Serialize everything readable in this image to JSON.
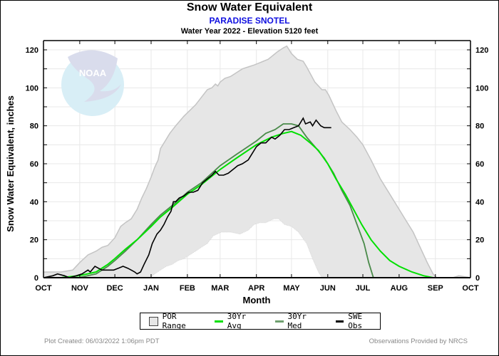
{
  "header": {
    "title": "Snow Water Equivalent",
    "station": "PARADISE SNOTEL",
    "subtitle": "Water Year 2022 -  Elevation 5120 feet"
  },
  "legend": {
    "items": [
      {
        "label": "POR Range",
        "kind": "box",
        "color": "#e6e6e6"
      },
      {
        "label": "30Yr Avg",
        "kind": "line",
        "color": "#00e000"
      },
      {
        "label": "30Yr Med",
        "kind": "line",
        "color": "#4a8a4a"
      },
      {
        "label": "SWE Obs",
        "kind": "line",
        "color": "#000000"
      }
    ]
  },
  "footer": {
    "left": "Plot Created: 06/03/2022 1:06pm PDT",
    "right": "Observations Provided by NRCS"
  },
  "logo": {
    "text": "NOAA"
  },
  "colors": {
    "por_fill": "#e6e6e6",
    "por_edge": "#c4c4c4",
    "avg": "#00e000",
    "med": "#4a8a4a",
    "obs": "#000000",
    "grid": "#e8e8e8"
  },
  "chart_data": {
    "type": "area",
    "title": "Snow Water Equivalent",
    "xlabel": "Month",
    "ylabel": "Snow Water Equivalent, inches",
    "x_unit": "day of water year (0 = Oct 1)",
    "xlim": [
      0,
      365
    ],
    "ylim": [
      0,
      120
    ],
    "grid": true,
    "legend_position": "bottom",
    "x_ticks": [
      {
        "label": "OCT",
        "day": 0
      },
      {
        "label": "NOV",
        "day": 31
      },
      {
        "label": "DEC",
        "day": 61
      },
      {
        "label": "JAN",
        "day": 92
      },
      {
        "label": "FEB",
        "day": 123
      },
      {
        "label": "MAR",
        "day": 151
      },
      {
        "label": "APR",
        "day": 182
      },
      {
        "label": "MAY",
        "day": 212
      },
      {
        "label": "JUN",
        "day": 243
      },
      {
        "label": "JUL",
        "day": 273
      },
      {
        "label": "AUG",
        "day": 304
      },
      {
        "label": "SEP",
        "day": 335
      },
      {
        "label": "OCT",
        "day": 365
      }
    ],
    "y_ticks": [
      0,
      20,
      40,
      60,
      80,
      100,
      120
    ],
    "y_minor_step": 10,
    "series": [
      {
        "name": "POR Max",
        "points": [
          [
            0,
            3
          ],
          [
            15,
            3
          ],
          [
            25,
            4
          ],
          [
            31,
            8
          ],
          [
            38,
            12
          ],
          [
            45,
            14
          ],
          [
            50,
            16
          ],
          [
            55,
            17
          ],
          [
            61,
            21
          ],
          [
            66,
            27
          ],
          [
            70,
            29
          ],
          [
            75,
            31
          ],
          [
            80,
            36
          ],
          [
            84,
            42
          ],
          [
            88,
            47
          ],
          [
            92,
            53
          ],
          [
            95,
            58
          ],
          [
            98,
            62
          ],
          [
            100,
            68
          ],
          [
            104,
            72
          ],
          [
            108,
            76
          ],
          [
            113,
            80
          ],
          [
            120,
            85
          ],
          [
            125,
            88
          ],
          [
            130,
            91
          ],
          [
            135,
            95
          ],
          [
            140,
            99
          ],
          [
            144,
            100
          ],
          [
            147,
            102
          ],
          [
            149,
            101
          ],
          [
            151,
            103
          ],
          [
            155,
            105
          ],
          [
            160,
            106
          ],
          [
            165,
            108
          ],
          [
            170,
            110
          ],
          [
            175,
            111
          ],
          [
            180,
            112
          ],
          [
            184,
            113
          ],
          [
            188,
            114
          ],
          [
            192,
            115
          ],
          [
            196,
            117
          ],
          [
            200,
            119
          ],
          [
            205,
            121
          ],
          [
            208,
            122
          ],
          [
            212,
            118
          ],
          [
            217,
            115
          ],
          [
            222,
            114
          ],
          [
            225,
            111
          ],
          [
            232,
            103
          ],
          [
            238,
            99
          ],
          [
            241,
            99
          ],
          [
            244,
            96
          ],
          [
            250,
            88
          ],
          [
            255,
            82
          ],
          [
            262,
            78
          ],
          [
            268,
            74
          ],
          [
            273,
            70
          ],
          [
            280,
            62
          ],
          [
            288,
            52
          ],
          [
            296,
            44
          ],
          [
            304,
            36
          ],
          [
            310,
            30
          ],
          [
            316,
            24
          ],
          [
            322,
            16
          ],
          [
            328,
            8
          ],
          [
            333,
            2
          ],
          [
            336,
            0
          ],
          [
            350,
            0
          ],
          [
            355,
            1
          ],
          [
            365,
            0
          ]
        ]
      },
      {
        "name": "POR Min",
        "points": [
          [
            0,
            0
          ],
          [
            91,
            0
          ],
          [
            95,
            2
          ],
          [
            100,
            4
          ],
          [
            105,
            6
          ],
          [
            110,
            7
          ],
          [
            115,
            9
          ],
          [
            120,
            10
          ],
          [
            125,
            12
          ],
          [
            130,
            14
          ],
          [
            135,
            16
          ],
          [
            140,
            18
          ],
          [
            145,
            22
          ],
          [
            152,
            24
          ],
          [
            160,
            24
          ],
          [
            168,
            23
          ],
          [
            175,
            25
          ],
          [
            180,
            28
          ],
          [
            185,
            29
          ],
          [
            190,
            29
          ],
          [
            197,
            31
          ],
          [
            201,
            31
          ],
          [
            206,
            28
          ],
          [
            212,
            27
          ],
          [
            218,
            24
          ],
          [
            225,
            18
          ],
          [
            230,
            10
          ],
          [
            235,
            3
          ],
          [
            238,
            0
          ],
          [
            365,
            0
          ]
        ]
      },
      {
        "name": "30Yr Avg",
        "points": [
          [
            0,
            0
          ],
          [
            15,
            0
          ],
          [
            30,
            1
          ],
          [
            45,
            3
          ],
          [
            55,
            7
          ],
          [
            61,
            10
          ],
          [
            70,
            15
          ],
          [
            80,
            20
          ],
          [
            92,
            27
          ],
          [
            100,
            32
          ],
          [
            110,
            37
          ],
          [
            123,
            44
          ],
          [
            135,
            49
          ],
          [
            151,
            57
          ],
          [
            165,
            63
          ],
          [
            182,
            70
          ],
          [
            195,
            74
          ],
          [
            205,
            76
          ],
          [
            212,
            77
          ],
          [
            220,
            75
          ],
          [
            228,
            71
          ],
          [
            235,
            67
          ],
          [
            243,
            60
          ],
          [
            250,
            52
          ],
          [
            258,
            44
          ],
          [
            265,
            36
          ],
          [
            272,
            28
          ],
          [
            280,
            20
          ],
          [
            288,
            14
          ],
          [
            296,
            9
          ],
          [
            304,
            6
          ],
          [
            315,
            3
          ],
          [
            325,
            1
          ],
          [
            333,
            0
          ],
          [
            365,
            0
          ]
        ]
      },
      {
        "name": "30Yr Med",
        "points": [
          [
            0,
            0
          ],
          [
            30,
            0
          ],
          [
            45,
            2
          ],
          [
            55,
            6
          ],
          [
            61,
            9
          ],
          [
            70,
            14
          ],
          [
            80,
            20
          ],
          [
            92,
            28
          ],
          [
            100,
            33
          ],
          [
            110,
            38
          ],
          [
            123,
            45
          ],
          [
            135,
            50
          ],
          [
            151,
            59
          ],
          [
            165,
            65
          ],
          [
            182,
            72
          ],
          [
            190,
            76
          ],
          [
            198,
            78
          ],
          [
            205,
            81
          ],
          [
            212,
            81
          ],
          [
            218,
            80
          ],
          [
            225,
            74
          ],
          [
            232,
            69
          ],
          [
            240,
            63
          ],
          [
            248,
            55
          ],
          [
            255,
            46
          ],
          [
            262,
            38
          ],
          [
            268,
            28
          ],
          [
            274,
            18
          ],
          [
            278,
            8
          ],
          [
            282,
            0
          ],
          [
            365,
            0
          ]
        ]
      },
      {
        "name": "SWE Obs",
        "points": [
          [
            0,
            0
          ],
          [
            8,
            1
          ],
          [
            12,
            2
          ],
          [
            18,
            1
          ],
          [
            22,
            0
          ],
          [
            28,
            1
          ],
          [
            33,
            2
          ],
          [
            38,
            4
          ],
          [
            40,
            3
          ],
          [
            44,
            6
          ],
          [
            47,
            5
          ],
          [
            50,
            4
          ],
          [
            55,
            4
          ],
          [
            60,
            4
          ],
          [
            64,
            5
          ],
          [
            68,
            6
          ],
          [
            72,
            5
          ],
          [
            75,
            4
          ],
          [
            78,
            3
          ],
          [
            80,
            2
          ],
          [
            83,
            3
          ],
          [
            86,
            7
          ],
          [
            90,
            12
          ],
          [
            93,
            18
          ],
          [
            97,
            23
          ],
          [
            100,
            25
          ],
          [
            103,
            28
          ],
          [
            106,
            32
          ],
          [
            109,
            35
          ],
          [
            111,
            40
          ],
          [
            113,
            40
          ],
          [
            116,
            42
          ],
          [
            120,
            43
          ],
          [
            124,
            45
          ],
          [
            128,
            45
          ],
          [
            132,
            46
          ],
          [
            136,
            50
          ],
          [
            140,
            52
          ],
          [
            144,
            54
          ],
          [
            147,
            56
          ],
          [
            150,
            54
          ],
          [
            154,
            54
          ],
          [
            158,
            55
          ],
          [
            162,
            57
          ],
          [
            166,
            59
          ],
          [
            170,
            60
          ],
          [
            175,
            62
          ],
          [
            178,
            65
          ],
          [
            182,
            69
          ],
          [
            186,
            71
          ],
          [
            190,
            71
          ],
          [
            195,
            74
          ],
          [
            198,
            73
          ],
          [
            202,
            75
          ],
          [
            206,
            78
          ],
          [
            210,
            78
          ],
          [
            214,
            79
          ],
          [
            218,
            80
          ],
          [
            222,
            84
          ],
          [
            224,
            81
          ],
          [
            228,
            82
          ],
          [
            230,
            80
          ],
          [
            233,
            83
          ],
          [
            237,
            80
          ],
          [
            240,
            79
          ],
          [
            243,
            79
          ],
          [
            246,
            79
          ]
        ]
      }
    ]
  }
}
